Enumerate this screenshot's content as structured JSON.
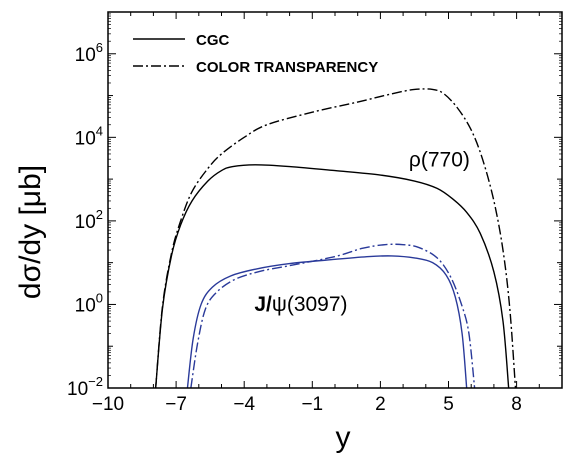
{
  "chart_data": {
    "type": "line",
    "title": "",
    "xlabel": "y",
    "ylabel": "dσ/dy [μb]",
    "xlim": [
      -10,
      10
    ],
    "ylim": [
      0.01,
      10000000
    ],
    "yscale": "log",
    "x_ticks": [
      -10,
      -7,
      -4,
      -1,
      2,
      5,
      8
    ],
    "x_tick_labels": [
      "−10",
      "−7",
      "−4",
      "−1",
      "2",
      "5",
      "8"
    ],
    "y_ticks": [
      0.01,
      1,
      100,
      10000,
      1000000
    ],
    "y_tick_labels": [
      {
        "base": "10",
        "exp": "−2"
      },
      {
        "base": "10",
        "exp": "0"
      },
      {
        "base": "10",
        "exp": "2"
      },
      {
        "base": "10",
        "exp": "4"
      },
      {
        "base": "10",
        "exp": "6"
      }
    ],
    "legend": {
      "position": "top-left",
      "entries": [
        {
          "label": "CGC",
          "style": "solid"
        },
        {
          "label": "COLOR TRANSPARENCY",
          "style": "dash-dot"
        }
      ]
    },
    "annotations": [
      {
        "text": "ρ(770)",
        "x": 4.6,
        "y": 2000
      },
      {
        "bold": "J/",
        "rest": "ψ(3097)",
        "x": -1.5,
        "y": 0.7
      }
    ],
    "colors": {
      "rho": "#000000",
      "jpsi": "#2a3a9a"
    },
    "series": [
      {
        "label_ref": "rho-CGC",
        "style": "solid",
        "color": "#000000",
        "points": [
          [
            -7.9,
            0.01
          ],
          [
            -7.6,
            0.8
          ],
          [
            -7.2,
            15
          ],
          [
            -6.8,
            80
          ],
          [
            -6.3,
            300
          ],
          [
            -5.6,
            900
          ],
          [
            -5,
            1600
          ],
          [
            -4.5,
            2000
          ],
          [
            -3.5,
            2200
          ],
          [
            -2,
            2000
          ],
          [
            0,
            1600
          ],
          [
            2,
            1250
          ],
          [
            3.5,
            900
          ],
          [
            4.5,
            600
          ],
          [
            5.2,
            330
          ],
          [
            5.8,
            160
          ],
          [
            6.4,
            50
          ],
          [
            7,
            6
          ],
          [
            7.4,
            0.4
          ],
          [
            7.65,
            0.01
          ]
        ]
      },
      {
        "label_ref": "rho-CT",
        "style": "dash-dot",
        "color": "#000000",
        "points": [
          [
            -7.9,
            0.01
          ],
          [
            -7.6,
            0.9
          ],
          [
            -7.2,
            17
          ],
          [
            -6.8,
            100
          ],
          [
            -6.3,
            500
          ],
          [
            -5.6,
            1800
          ],
          [
            -5,
            4000
          ],
          [
            -4,
            10000
          ],
          [
            -3,
            20000
          ],
          [
            -1,
            40000
          ],
          [
            1,
            70000
          ],
          [
            2.5,
            110000
          ],
          [
            3.5,
            140000
          ],
          [
            4.3,
            140000
          ],
          [
            4.8,
            110000
          ],
          [
            5.4,
            50000
          ],
          [
            6,
            15000
          ],
          [
            6.5,
            3000
          ],
          [
            7,
            300
          ],
          [
            7.4,
            20
          ],
          [
            7.7,
            0.8
          ],
          [
            7.95,
            0.01
          ]
        ]
      },
      {
        "label_ref": "jpsi-CGC",
        "style": "solid",
        "color": "#2a3a9a",
        "points": [
          [
            -6.5,
            0.01
          ],
          [
            -6.25,
            0.15
          ],
          [
            -5.9,
            1
          ],
          [
            -5.4,
            2.6
          ],
          [
            -4.6,
            4.8
          ],
          [
            -3.5,
            7
          ],
          [
            -2,
            9.5
          ],
          [
            0,
            12
          ],
          [
            1.5,
            14
          ],
          [
            2.5,
            14.5
          ],
          [
            3.5,
            13
          ],
          [
            4.3,
            10
          ],
          [
            4.9,
            5
          ],
          [
            5.3,
            1.5
          ],
          [
            5.6,
            0.2
          ],
          [
            5.8,
            0.01
          ]
        ]
      },
      {
        "label_ref": "jpsi-CT",
        "style": "dash-dot",
        "color": "#2a3a9a",
        "points": [
          [
            -6.35,
            0.01
          ],
          [
            -6.05,
            0.12
          ],
          [
            -5.7,
            0.8
          ],
          [
            -5.2,
            2
          ],
          [
            -4.4,
            4
          ],
          [
            -3.3,
            6.2
          ],
          [
            -2,
            8.5
          ],
          [
            0,
            14
          ],
          [
            1.2,
            22
          ],
          [
            2.2,
            27
          ],
          [
            3,
            27
          ],
          [
            3.7,
            23
          ],
          [
            4.5,
            13
          ],
          [
            5.1,
            4.5
          ],
          [
            5.6,
            0.9
          ],
          [
            5.9,
            0.2
          ],
          [
            6.15,
            0.01
          ]
        ]
      }
    ]
  }
}
